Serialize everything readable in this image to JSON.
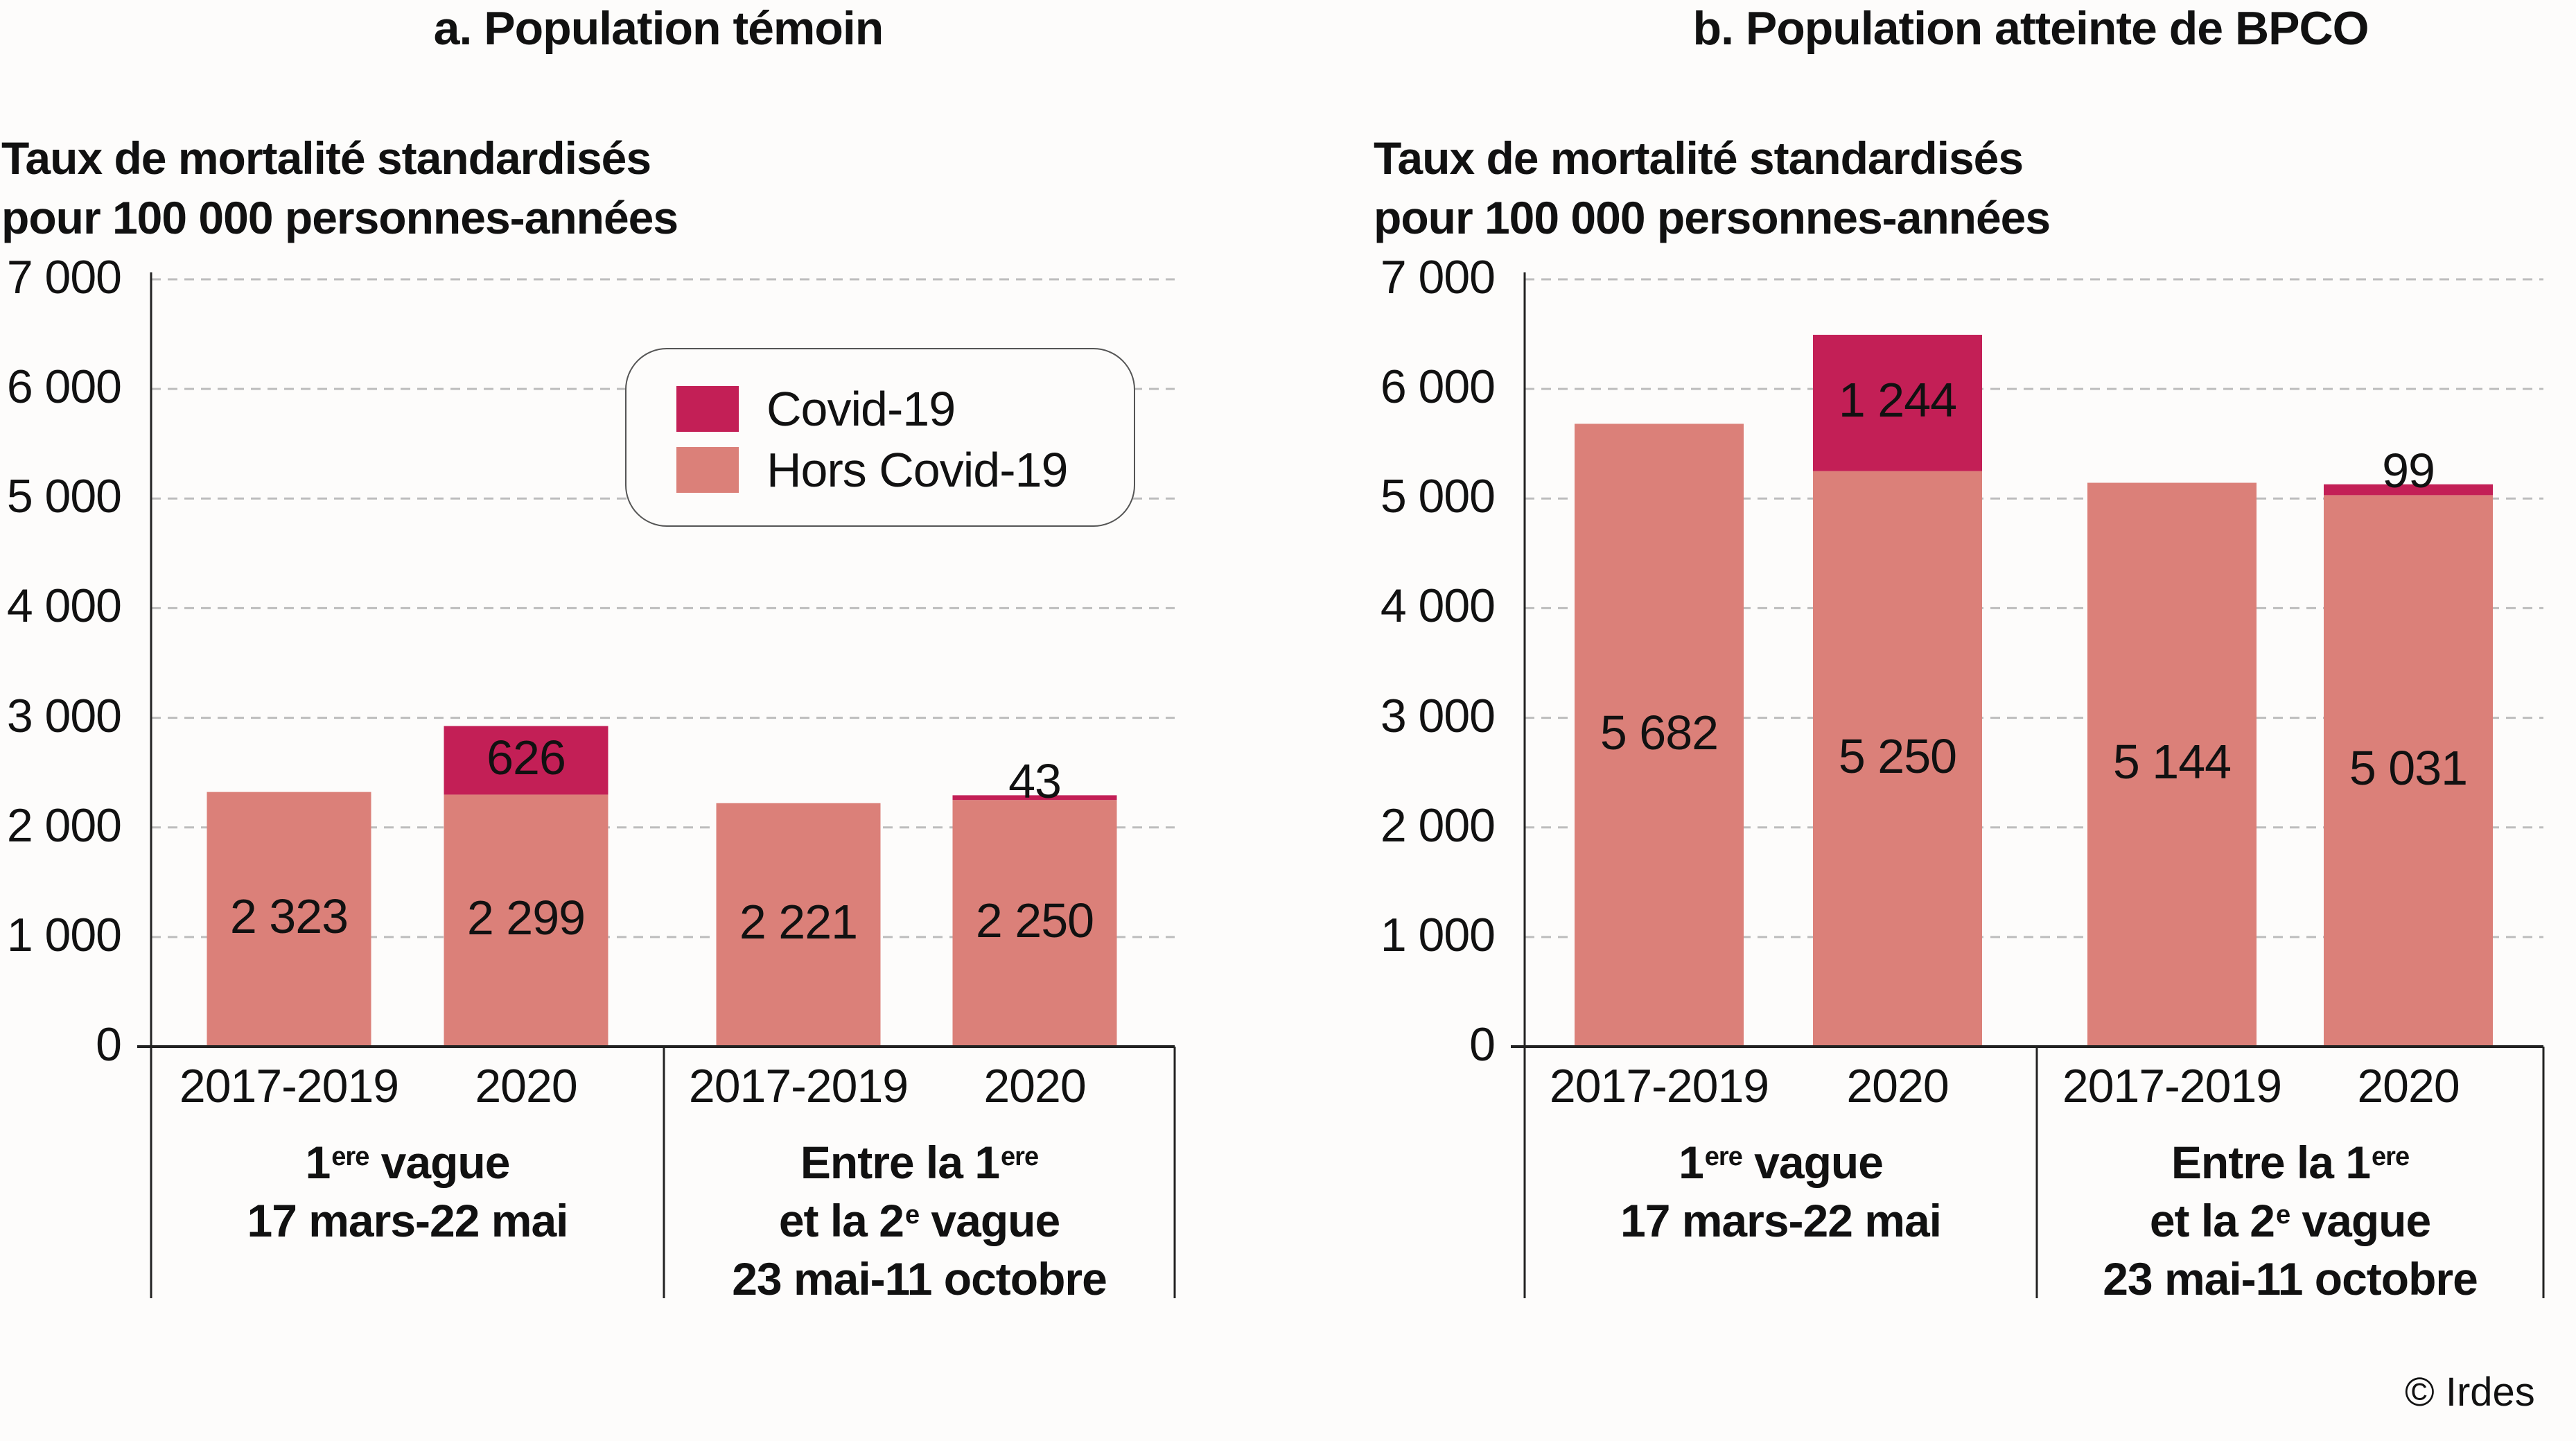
{
  "colors": {
    "covid": "#c31f56",
    "hors_covid": "#db8079",
    "grid": "#bdbdbd",
    "axis": "#222222"
  },
  "legend": {
    "items": [
      {
        "label": "Covid-19",
        "color_key": "covid"
      },
      {
        "label": "Hors Covid-19",
        "color_key": "hors_covid"
      }
    ]
  },
  "footer": {
    "copyright": "© Irdes"
  },
  "chart_data": [
    {
      "type": "bar",
      "stacked": true,
      "title": "a. Population témoin",
      "ylabel_line1": "Taux de mortalité standardisés",
      "ylabel_line2": "pour 100 000 personnes-années",
      "ylim": [
        0,
        7000
      ],
      "yticks": [
        0,
        1000,
        2000,
        3000,
        4000,
        5000,
        6000,
        7000
      ],
      "ytick_labels": [
        "0",
        "1 000",
        "2 000",
        "3 000",
        "4 000",
        "5 000",
        "6 000",
        "7 000"
      ],
      "grid": true,
      "categories": [
        "2017-2019",
        "2020",
        "2017-2019",
        "2020"
      ],
      "groups": [
        {
          "line1_main": "1",
          "line1_sup": "ere",
          "line1_rest": " vague",
          "line2": "17 mars-22 mai",
          "line3": ""
        },
        {
          "line1_main": "Entre la 1",
          "line1_sup": "ere",
          "line1_rest": "",
          "line2_main": "et la 2",
          "line2_sup": "e",
          "line2_rest": " vague",
          "line3": "23 mai-11 octobre"
        }
      ],
      "series": [
        {
          "name": "Hors Covid-19",
          "values": [
            2323,
            2299,
            2221,
            2250
          ],
          "labels": [
            "2 323",
            "2 299",
            "2 221",
            "2 250"
          ]
        },
        {
          "name": "Covid-19",
          "values": [
            0,
            626,
            0,
            43
          ],
          "labels": [
            "",
            "626",
            "",
            "43"
          ]
        }
      ],
      "legend_position": "top-right"
    },
    {
      "type": "bar",
      "stacked": true,
      "title": "b. Population atteinte de BPCO",
      "ylabel_line1": "Taux de mortalité standardisés",
      "ylabel_line2": "pour 100 000 personnes-années",
      "ylim": [
        0,
        7000
      ],
      "yticks": [
        0,
        1000,
        2000,
        3000,
        4000,
        5000,
        6000,
        7000
      ],
      "ytick_labels": [
        "0",
        "1 000",
        "2 000",
        "3 000",
        "4 000",
        "5 000",
        "6 000",
        "7 000"
      ],
      "grid": true,
      "categories": [
        "2017-2019",
        "2020",
        "2017-2019",
        "2020"
      ],
      "groups": [
        {
          "line1_main": "1",
          "line1_sup": "ere",
          "line1_rest": " vague",
          "line2": "17 mars-22 mai",
          "line3": ""
        },
        {
          "line1_main": "Entre la 1",
          "line1_sup": "ere",
          "line1_rest": "",
          "line2_main": "et la 2",
          "line2_sup": "e",
          "line2_rest": " vague",
          "line3": "23 mai-11 octobre"
        }
      ],
      "series": [
        {
          "name": "Hors Covid-19",
          "values": [
            5682,
            5250,
            5144,
            5031
          ],
          "labels": [
            "5 682",
            "5 250",
            "5 144",
            "5 031"
          ]
        },
        {
          "name": "Covid-19",
          "values": [
            0,
            1244,
            0,
            99
          ],
          "labels": [
            "",
            "1 244",
            "",
            "99"
          ]
        }
      ],
      "legend_position": "none"
    }
  ]
}
